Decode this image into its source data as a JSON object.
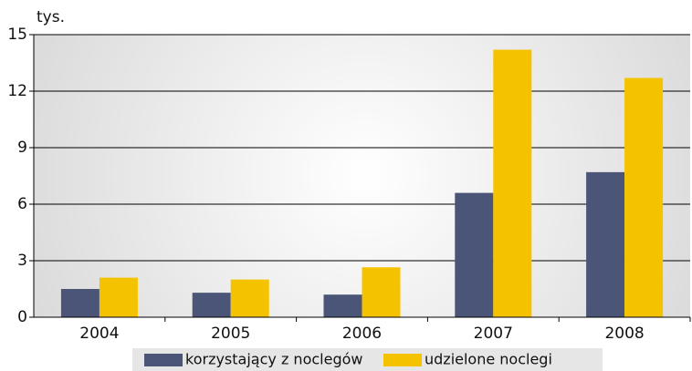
{
  "chart_data": {
    "type": "bar",
    "y_label": "tys.",
    "categories": [
      "2004",
      "2005",
      "2006",
      "2007",
      "2008"
    ],
    "series": [
      {
        "name": "korzystający z noclegów",
        "color": "#4a5578",
        "values": [
          1.5,
          1.3,
          1.2,
          6.6,
          7.7
        ]
      },
      {
        "name": "udzielone noclegi",
        "color": "#f5c200",
        "values": [
          2.1,
          2.0,
          2.65,
          14.2,
          12.7
        ]
      }
    ],
    "ylim": [
      0,
      15
    ],
    "yticks": [
      0,
      3,
      6,
      9,
      12,
      15
    ],
    "grid": true,
    "legend": "bottom"
  }
}
